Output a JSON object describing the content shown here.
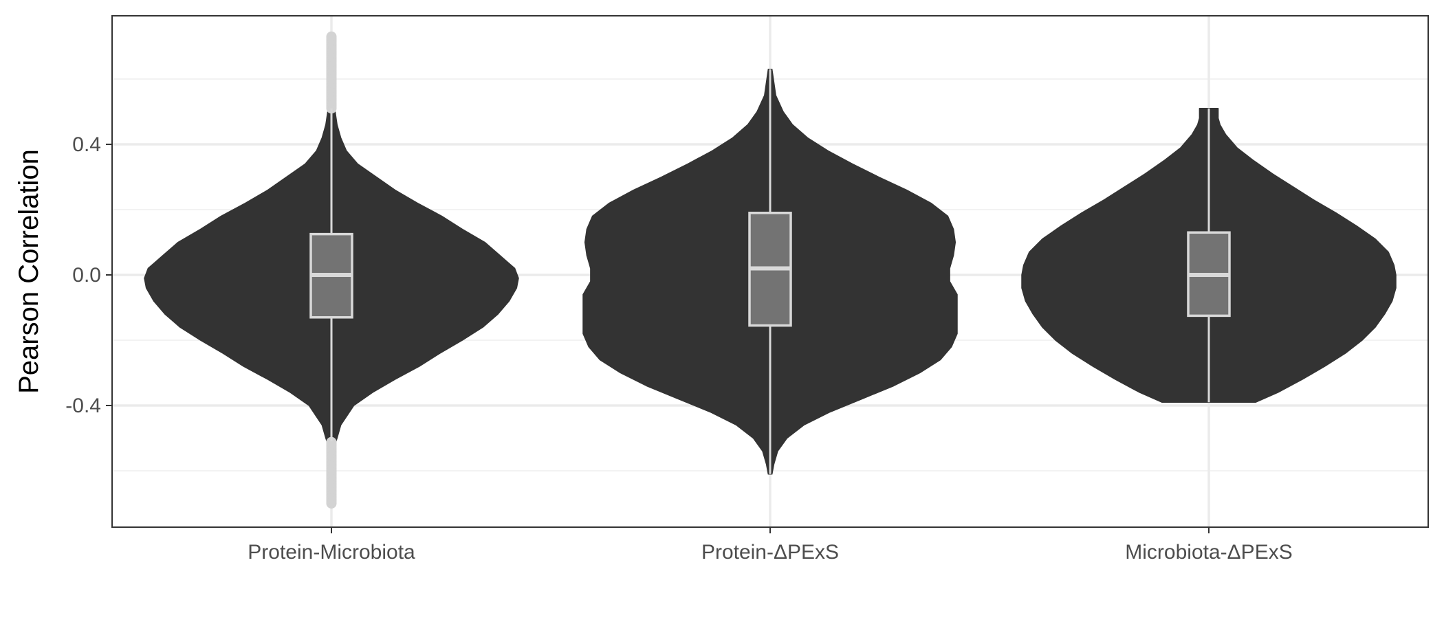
{
  "chart_data": {
    "type": "violin",
    "title": "",
    "xlabel": "",
    "ylabel": "Pearson Correlation",
    "ylim": [
      -0.78,
      0.78
    ],
    "y_ticks": [
      -0.4,
      0.0,
      0.4
    ],
    "y_tick_labels": [
      "-0.4",
      "0.0",
      "0.4"
    ],
    "grid": true,
    "legend": "none",
    "categories": [
      "Protein-Microbiota",
      "Protein-ΔPExS",
      "Microbiota-ΔPExS"
    ],
    "groups": [
      {
        "name": "Protein-Microbiota",
        "range": [
          -0.7,
          0.73
        ],
        "whiskers": [
          -0.51,
          0.51
        ],
        "box": {
          "q1": -0.13,
          "median": 0.0,
          "q3": 0.125
        },
        "outlier_ranges": [
          [
            0.51,
            0.73
          ],
          [
            -0.7,
            -0.51
          ]
        ],
        "density": [
          [
            -0.7,
            0.003
          ],
          [
            -0.64,
            0.004
          ],
          [
            -0.58,
            0.006
          ],
          [
            -0.53,
            0.012
          ],
          [
            -0.5,
            0.03
          ],
          [
            -0.46,
            0.05
          ],
          [
            -0.4,
            0.12
          ],
          [
            -0.36,
            0.22
          ],
          [
            -0.32,
            0.34
          ],
          [
            -0.28,
            0.47
          ],
          [
            -0.24,
            0.58
          ],
          [
            -0.2,
            0.7
          ],
          [
            -0.16,
            0.81
          ],
          [
            -0.12,
            0.89
          ],
          [
            -0.08,
            0.95
          ],
          [
            -0.04,
            0.99
          ],
          [
            -0.01,
            1.0
          ],
          [
            0.02,
            0.98
          ],
          [
            0.06,
            0.9
          ],
          [
            0.1,
            0.82
          ],
          [
            0.14,
            0.7
          ],
          [
            0.18,
            0.59
          ],
          [
            0.22,
            0.46
          ],
          [
            0.26,
            0.34
          ],
          [
            0.3,
            0.24
          ],
          [
            0.34,
            0.14
          ],
          [
            0.38,
            0.08
          ],
          [
            0.42,
            0.05
          ],
          [
            0.46,
            0.03
          ],
          [
            0.5,
            0.02
          ],
          [
            0.55,
            0.006
          ],
          [
            0.62,
            0.004
          ],
          [
            0.73,
            0.003
          ]
        ]
      },
      {
        "name": "Protein-ΔPExS",
        "range": [
          -0.61,
          0.63
        ],
        "whiskers": [
          -0.61,
          0.63
        ],
        "box": {
          "q1": -0.155,
          "median": 0.02,
          "q3": 0.19
        },
        "outlier_ranges": [],
        "density": [
          [
            -0.61,
            0.01
          ],
          [
            -0.58,
            0.02
          ],
          [
            -0.54,
            0.04
          ],
          [
            -0.5,
            0.09
          ],
          [
            -0.46,
            0.18
          ],
          [
            -0.42,
            0.32
          ],
          [
            -0.38,
            0.49
          ],
          [
            -0.34,
            0.66
          ],
          [
            -0.3,
            0.8
          ],
          [
            -0.26,
            0.91
          ],
          [
            -0.22,
            0.97
          ],
          [
            -0.18,
            1.0
          ],
          [
            -0.12,
            1.0
          ],
          [
            -0.06,
            1.0
          ],
          [
            -0.02,
            0.96
          ],
          [
            0.02,
            0.96
          ],
          [
            0.06,
            0.98
          ],
          [
            0.1,
            0.99
          ],
          [
            0.14,
            0.98
          ],
          [
            0.18,
            0.95
          ],
          [
            0.22,
            0.86
          ],
          [
            0.26,
            0.73
          ],
          [
            0.3,
            0.58
          ],
          [
            0.34,
            0.44
          ],
          [
            0.38,
            0.31
          ],
          [
            0.42,
            0.2
          ],
          [
            0.46,
            0.12
          ],
          [
            0.5,
            0.07
          ],
          [
            0.55,
            0.03
          ],
          [
            0.63,
            0.01
          ]
        ]
      },
      {
        "name": "Microbiota-ΔPExS",
        "range": [
          -0.39,
          0.51
        ],
        "whiskers": [
          -0.39,
          0.51
        ],
        "box": {
          "q1": -0.125,
          "median": 0.0,
          "q3": 0.13
        },
        "outlier_ranges": [],
        "density": [
          [
            -0.39,
            0.25
          ],
          [
            -0.36,
            0.37
          ],
          [
            -0.32,
            0.5
          ],
          [
            -0.28,
            0.62
          ],
          [
            -0.24,
            0.73
          ],
          [
            -0.2,
            0.82
          ],
          [
            -0.16,
            0.89
          ],
          [
            -0.12,
            0.94
          ],
          [
            -0.08,
            0.98
          ],
          [
            -0.04,
            1.0
          ],
          [
            0.0,
            1.0
          ],
          [
            0.03,
            0.99
          ],
          [
            0.07,
            0.96
          ],
          [
            0.11,
            0.89
          ],
          [
            0.15,
            0.79
          ],
          [
            0.19,
            0.68
          ],
          [
            0.23,
            0.56
          ],
          [
            0.27,
            0.45
          ],
          [
            0.31,
            0.34
          ],
          [
            0.35,
            0.24
          ],
          [
            0.39,
            0.15
          ],
          [
            0.43,
            0.09
          ],
          [
            0.46,
            0.06
          ],
          [
            0.48,
            0.05
          ],
          [
            0.51,
            0.05
          ]
        ]
      }
    ]
  },
  "colors": {
    "background": "#ffffff",
    "panel_border": "#333333",
    "grid_major": "#ebebeb",
    "grid_minor": "#f2f2f2",
    "violin_fill": "#333333",
    "box_fill": "#737373",
    "box_stroke": "#d9d9d9",
    "outlier": "#d3d3d3",
    "tick_text": "#4d4d4d",
    "axis_title": "#000000"
  }
}
